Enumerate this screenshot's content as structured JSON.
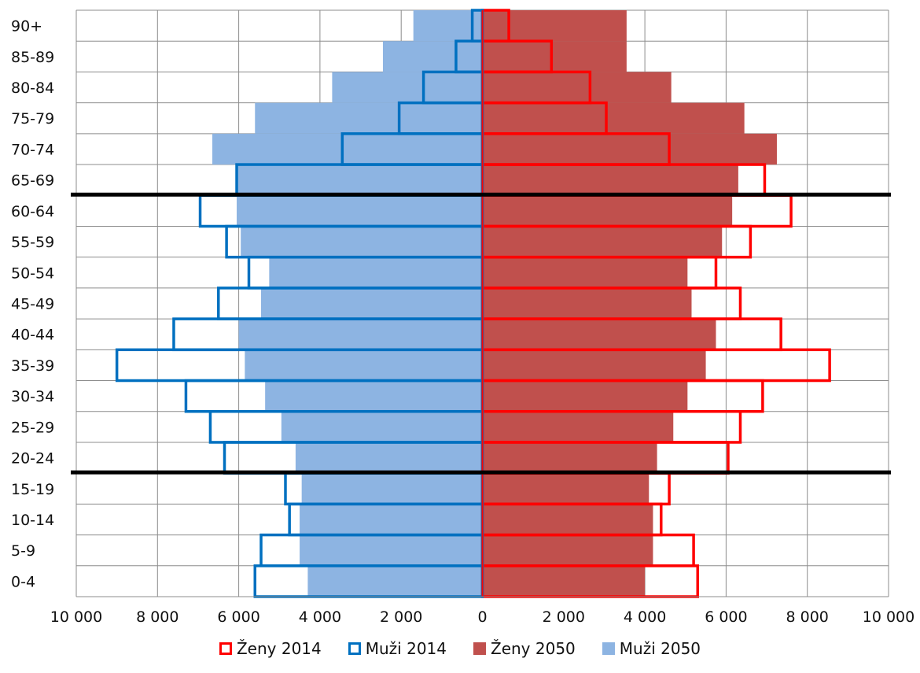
{
  "chart_data": {
    "type": "bar",
    "orientation": "horizontal",
    "style": "population-pyramid",
    "categories": [
      "0-4",
      "5-9",
      "10-14",
      "15-19",
      "20-24",
      "25-29",
      "30-34",
      "35-39",
      "40-44",
      "45-49",
      "50-54",
      "55-59",
      "60-64",
      "65-69",
      "70-74",
      "75-79",
      "80-84",
      "85-89",
      "90+"
    ],
    "series": [
      {
        "name": "Ženy 2014",
        "side": "right",
        "style": "outline",
        "color": "#ff0000",
        "values": [
          5300,
          5200,
          4400,
          4600,
          6050,
          6350,
          6900,
          8550,
          7350,
          6350,
          5750,
          6600,
          7600,
          6950,
          4600,
          3050,
          2650,
          1700,
          650
        ]
      },
      {
        "name": "Muži 2014",
        "side": "left",
        "style": "outline",
        "color": "#0070c0",
        "values": [
          5600,
          5450,
          4750,
          4850,
          6350,
          6700,
          7300,
          9000,
          7600,
          6500,
          5750,
          6300,
          6950,
          6050,
          3450,
          2050,
          1450,
          650,
          250
        ]
      },
      {
        "name": "Ženy 2050",
        "side": "right",
        "style": "filled",
        "color": "#c0504d",
        "values": [
          4000,
          4200,
          4200,
          4100,
          4300,
          4700,
          5050,
          5500,
          5750,
          5150,
          5050,
          5900,
          6150,
          6300,
          7250,
          6450,
          4650,
          3550,
          3550
        ]
      },
      {
        "name": "Muži 2050",
        "side": "left",
        "style": "filled",
        "color": "#8db4e2",
        "values": [
          4300,
          4500,
          4500,
          4450,
          4600,
          4950,
          5350,
          5850,
          6000,
          5450,
          5250,
          5950,
          6050,
          6050,
          6650,
          5600,
          3700,
          2450,
          1700
        ]
      }
    ],
    "xlim": [
      -10000,
      10000
    ],
    "xticks": [
      -10000,
      -8000,
      -6000,
      -4000,
      -2000,
      0,
      2000,
      4000,
      6000,
      8000,
      10000
    ],
    "xtick_labels": [
      "10 000",
      "8 000",
      "6 000",
      "4 000",
      "2 000",
      "0",
      "2 000",
      "4 000",
      "6 000",
      "8 000",
      "10 000"
    ],
    "grid": true,
    "legend": "bottom",
    "reference_lines_after_categories": [
      "15-19",
      "60-64"
    ],
    "reference_line_color": "#000000"
  }
}
